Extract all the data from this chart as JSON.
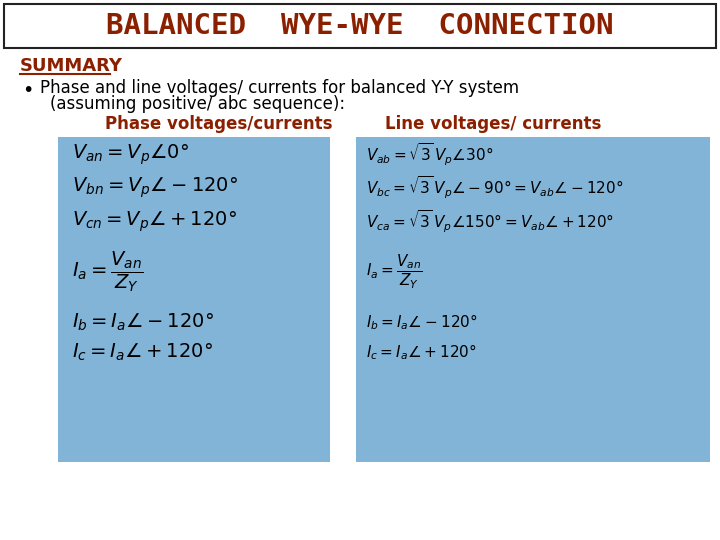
{
  "title": "BALANCED  WYE-WYE  CONNECTION",
  "title_color": "#8B2000",
  "title_border": "#222222",
  "summary_text": "SUMMARY",
  "bullet_line1": "Phase and line voltages/ currents for balanced Y-Y system",
  "bullet_line2": "(assuming positive/ abc sequence):",
  "phase_label": "Phase voltages/currents",
  "line_label": "Line voltages/ currents",
  "box_color": "#82B4D8",
  "label_color": "#8B2000",
  "summary_color": "#8B2000",
  "bg_color": "#FFFFFF",
  "phase_eqs": [
    "$V_{an} = V_p\\angle 0°$",
    "$V_{bn} = V_p\\angle -120°$",
    "$V_{cn} = V_p\\angle +120°$",
    "$I_a = \\dfrac{V_{an}}{Z_Y}$",
    "$I_b = I_a\\angle -120°$",
    "$I_c = I_a\\angle +120°$"
  ],
  "line_eqs": [
    "$V_{ab} = \\sqrt{3}\\,V_p\\angle 30°$",
    "$V_{bc} = \\sqrt{3}\\,V_p\\angle -90° = V_{ab}\\angle -120°$",
    "$V_{ca} = \\sqrt{3}\\,V_p\\angle 150° = V_{ab}\\angle +120°$",
    "$I_a = \\dfrac{V_{an}}{Z_Y}$",
    "$I_b = I_a\\angle -120°$",
    "$I_c = I_a\\angle +120°$"
  ]
}
